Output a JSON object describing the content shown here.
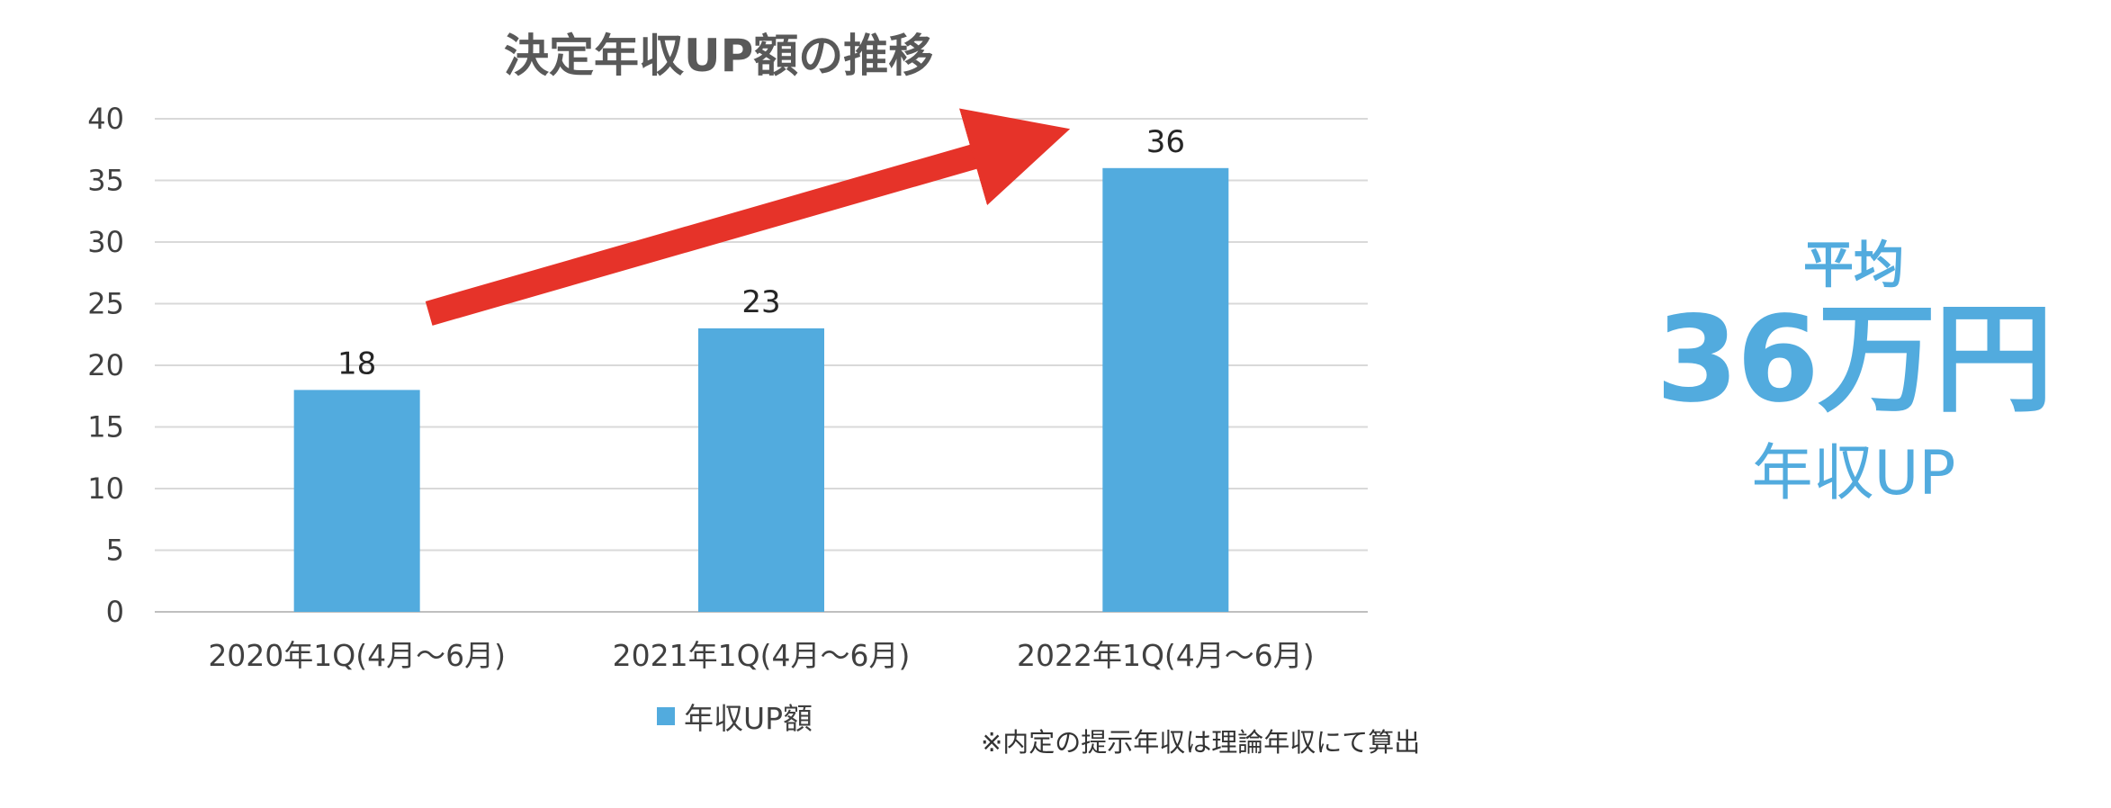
{
  "chart_data": {
    "type": "bar",
    "title": "決定年収UP額の推移",
    "categories": [
      "2020年1Q(4月〜6月)",
      "2021年1Q(4月〜6月)",
      "2022年1Q(4月〜6月)"
    ],
    "series": [
      {
        "name": "年収UP額",
        "values": [
          18,
          23,
          36
        ],
        "color": "#52abde"
      }
    ],
    "ylim": [
      0,
      40
    ],
    "yticks": [
      0,
      5,
      10,
      15,
      20,
      25,
      30,
      35,
      40
    ],
    "grid": true,
    "legend": "bottom-center",
    "data_labels": [
      "18",
      "23",
      "36"
    ],
    "annotation": "red trend arrow from 2020 bar to 2022 bar",
    "arrow_color": "#e63329"
  },
  "note": "※内定の提示年収は理論年収にて算出",
  "summary": {
    "label": "平均",
    "value": "36万円",
    "sub": "年収UP"
  }
}
